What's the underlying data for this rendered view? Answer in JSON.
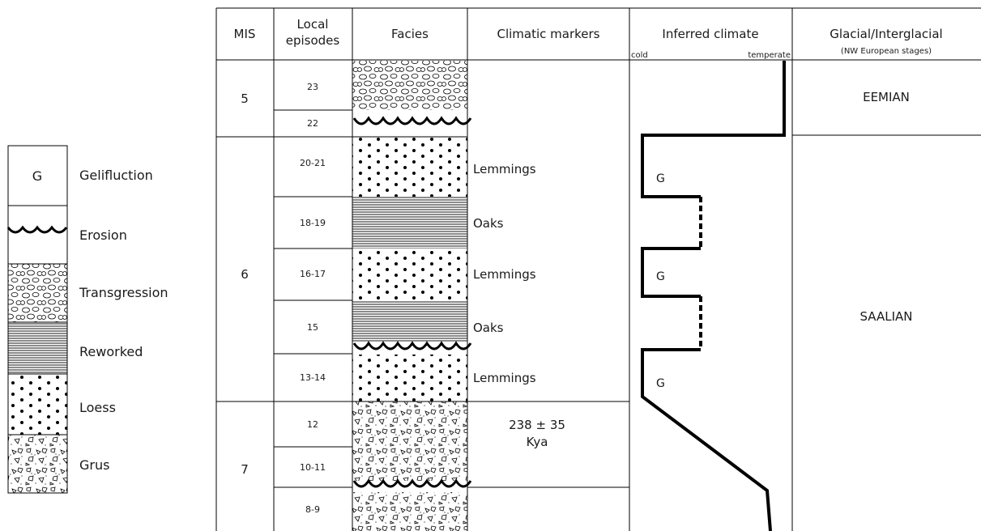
{
  "legend": {
    "items": [
      {
        "pattern": "gelifluction",
        "symbol": "G",
        "label": "Gelifluction"
      },
      {
        "pattern": "erosion",
        "symbol": "",
        "label": "Erosion"
      },
      {
        "pattern": "transgression",
        "symbol": "",
        "label": "Transgression"
      },
      {
        "pattern": "reworked",
        "symbol": "",
        "label": "Reworked"
      },
      {
        "pattern": "loess",
        "symbol": "",
        "label": "Loess"
      },
      {
        "pattern": "grus",
        "symbol": "",
        "label": "Grus"
      }
    ]
  },
  "table": {
    "headers": {
      "mis": "MIS",
      "local_line1": "Local",
      "local_line2": "episodes",
      "facies": "Facies",
      "markers": "Climatic markers",
      "climate": "Inferred climate",
      "climate_cold": "cold",
      "climate_temperate": "temperate",
      "stage_line1": "Glacial/Interglacial",
      "stage_line2": "(NW European stages)"
    },
    "mis_values": [
      "5",
      "6",
      "7"
    ],
    "episodes": [
      "23",
      "22",
      "20-21",
      "18-19",
      "16-17",
      "15",
      "13-14",
      "12",
      "10-11",
      "8-9"
    ],
    "facies_sequence": [
      "transgression",
      "erosion",
      "loess",
      "reworked",
      "loess",
      "reworked",
      "erosion",
      "loess",
      "grus",
      "grus",
      "erosion",
      "grus"
    ],
    "markers": [
      "Lemmings",
      "Oaks",
      "Lemmings",
      "Oaks",
      "Lemmings"
    ],
    "date_line1": "238 ± 35",
    "date_line2": "Kya",
    "gelifluction_symbol": "G",
    "stages": [
      "EEMIAN",
      "SAALIAN"
    ]
  }
}
